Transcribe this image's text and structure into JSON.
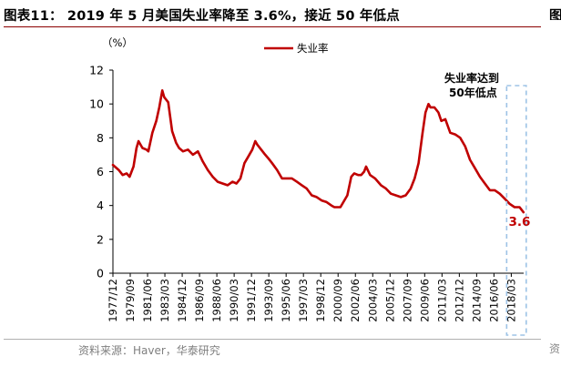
{
  "figure": {
    "title": "图表11： 2019 年 5 月美国失业率降至 3.6%，接近 50 年低点",
    "source": "资料来源：Haver，华泰研究",
    "edge_char_top": "图",
    "edge_char_bottom": "资"
  },
  "chart_data": {
    "type": "line",
    "title": "",
    "ylabel": "（%）",
    "xlabel": "",
    "ylim": [
      0,
      12
    ],
    "yticks": [
      0,
      2,
      4,
      6,
      8,
      10,
      12
    ],
    "xlim": [
      1977.917,
      2019.417
    ],
    "xtick_labels": [
      "1977/12",
      "1979/09",
      "1981/06",
      "1983/03",
      "1984/12",
      "1986/09",
      "1988/06",
      "1990/03",
      "1991/12",
      "1993/09",
      "1995/06",
      "1997/03",
      "1998/12",
      "2000/09",
      "2002/06",
      "2004/03",
      "2005/12",
      "2007/09",
      "2009/06",
      "2011/03",
      "2012/12",
      "2014/09",
      "2016/06",
      "2018/03"
    ],
    "grid": false,
    "legend_position": "top-center",
    "series": [
      {
        "name": "失业率",
        "color": "#c00000",
        "x": [
          1977.92,
          1978.5,
          1978.9,
          1979.3,
          1979.6,
          1980.0,
          1980.3,
          1980.5,
          1980.9,
          1981.3,
          1981.5,
          1981.9,
          1982.3,
          1982.6,
          1982.9,
          1983.1,
          1983.5,
          1983.9,
          1984.3,
          1984.6,
          1985.0,
          1985.5,
          1986.0,
          1986.5,
          1987.0,
          1987.5,
          1988.0,
          1988.5,
          1989.0,
          1989.5,
          1990.0,
          1990.4,
          1990.8,
          1991.2,
          1991.6,
          1992.0,
          1992.3,
          1992.5,
          1992.9,
          1993.3,
          1993.6,
          1994.0,
          1994.5,
          1995.0,
          1995.5,
          1996.0,
          1996.5,
          1997.0,
          1997.5,
          1998.0,
          1998.5,
          1999.0,
          1999.5,
          2000.0,
          2000.3,
          2000.9,
          2001.3,
          2001.6,
          2002.0,
          2002.3,
          2002.7,
          2003.0,
          2003.3,
          2003.5,
          2003.9,
          2004.4,
          2005.0,
          2005.5,
          2006.0,
          2006.5,
          2007.0,
          2007.5,
          2008.0,
          2008.4,
          2008.8,
          2009.2,
          2009.5,
          2009.8,
          2010.0,
          2010.4,
          2010.8,
          2011.1,
          2011.5,
          2012.0,
          2012.5,
          2013.0,
          2013.5,
          2014.0,
          2014.5,
          2015.0,
          2015.5,
          2016.0,
          2016.5,
          2017.0,
          2017.5,
          2018.0,
          2018.5,
          2019.0,
          2019.4
        ],
        "values": [
          6.4,
          6.1,
          5.8,
          5.9,
          5.7,
          6.3,
          7.4,
          7.8,
          7.4,
          7.3,
          7.2,
          8.3,
          9.0,
          9.8,
          10.8,
          10.4,
          10.1,
          8.4,
          7.7,
          7.4,
          7.2,
          7.3,
          7.0,
          7.2,
          6.6,
          6.1,
          5.7,
          5.4,
          5.3,
          5.2,
          5.4,
          5.3,
          5.6,
          6.5,
          6.9,
          7.3,
          7.8,
          7.6,
          7.3,
          7.0,
          6.8,
          6.5,
          6.1,
          5.6,
          5.6,
          5.6,
          5.4,
          5.2,
          5.0,
          4.6,
          4.5,
          4.3,
          4.2,
          4.0,
          3.9,
          3.9,
          4.3,
          4.6,
          5.7,
          5.9,
          5.8,
          5.8,
          6.0,
          6.3,
          5.8,
          5.6,
          5.2,
          5.0,
          4.7,
          4.6,
          4.5,
          4.6,
          5.0,
          5.6,
          6.5,
          8.3,
          9.5,
          10.0,
          9.8,
          9.8,
          9.5,
          9.0,
          9.1,
          8.3,
          8.2,
          8.0,
          7.5,
          6.7,
          6.2,
          5.7,
          5.3,
          4.9,
          4.9,
          4.7,
          4.4,
          4.1,
          3.9,
          3.9,
          3.6
        ]
      }
    ],
    "annotations": [
      {
        "text_line1": "失业率达到",
        "text_line2": "50年低点",
        "x_range": [
          2017.7,
          2019.4
        ]
      },
      {
        "text": "3.6",
        "x": 2019.0,
        "y": 2.8,
        "color": "#c00000"
      }
    ]
  }
}
